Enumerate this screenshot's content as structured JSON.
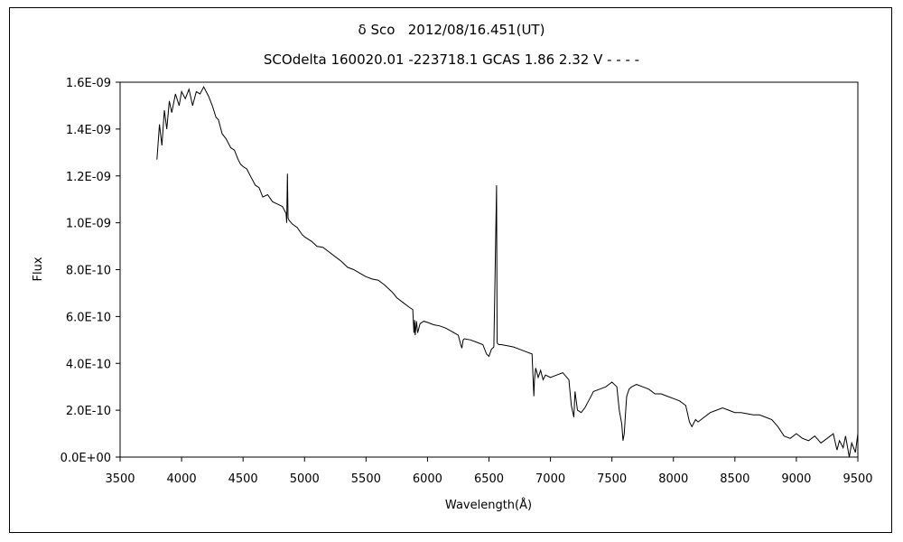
{
  "chart_data": {
    "type": "line",
    "title": "δ Sco   2012/08/16.451(UT)",
    "subtitle": "SCOdelta 160020.01 -223718.1 GCAS 1.86 2.32 V - - - -",
    "xlabel": "Wavelength(Å)",
    "ylabel": "Flux",
    "xlim": [
      3500,
      9500
    ],
    "ylim": [
      0,
      1.6e-09
    ],
    "xticks": [
      3500,
      4000,
      4500,
      5000,
      5500,
      6000,
      6500,
      7000,
      7500,
      8000,
      8500,
      9000,
      9500
    ],
    "yticks": [
      {
        "value": 0,
        "label": "0.0E+00"
      },
      {
        "value": 2e-10,
        "label": "2.0E-10"
      },
      {
        "value": 4e-10,
        "label": "4.0E-10"
      },
      {
        "value": 6e-10,
        "label": "6.0E-10"
      },
      {
        "value": 8e-10,
        "label": "8.0E-10"
      },
      {
        "value": 1e-09,
        "label": "1.0E-09"
      },
      {
        "value": 1.2e-09,
        "label": "1.2E-09"
      },
      {
        "value": 1.4e-09,
        "label": "1.4E-09"
      },
      {
        "value": 1.6e-09,
        "label": "1.6E-09"
      }
    ],
    "grid": false,
    "legend": "none",
    "line_color": "#000000",
    "series": [
      {
        "x": [
          3800,
          3820,
          3840,
          3860,
          3880,
          3900,
          3920,
          3950,
          3980,
          4000,
          4030,
          4060,
          4090,
          4120,
          4150,
          4180,
          4200,
          4220,
          4250,
          4280,
          4300,
          4330,
          4360,
          4400,
          4430,
          4460,
          4480,
          4500,
          4530,
          4560,
          4600,
          4630,
          4660,
          4700,
          4740,
          4780,
          4820,
          4850,
          4855,
          4861,
          4866,
          4875,
          4900,
          4940,
          4980,
          5000,
          5030,
          5060,
          5100,
          5150,
          5200,
          5250,
          5300,
          5350,
          5400,
          5450,
          5500,
          5550,
          5600,
          5650,
          5700,
          5720,
          5750,
          5800,
          5850,
          5880,
          5890,
          5895,
          5900,
          5910,
          5920,
          5940,
          5970,
          6000,
          6050,
          6100,
          6150,
          6200,
          6250,
          6270,
          6280,
          6290,
          6300,
          6350,
          6400,
          6450,
          6480,
          6500,
          6520,
          6540,
          6555,
          6562,
          6566,
          6570,
          6580,
          6600,
          6650,
          6700,
          6750,
          6800,
          6850,
          6865,
          6870,
          6880,
          6900,
          6920,
          6940,
          6960,
          7000,
          7050,
          7100,
          7150,
          7170,
          7190,
          7200,
          7220,
          7250,
          7280,
          7300,
          7320,
          7350,
          7400,
          7450,
          7500,
          7540,
          7560,
          7580,
          7590,
          7600,
          7610,
          7620,
          7640,
          7660,
          7700,
          7750,
          7800,
          7850,
          7900,
          7950,
          8000,
          8050,
          8100,
          8130,
          8150,
          8180,
          8200,
          8250,
          8300,
          8350,
          8400,
          8450,
          8500,
          8550,
          8600,
          8650,
          8700,
          8750,
          8800,
          8850,
          8900,
          8950,
          9000,
          9050,
          9100,
          9150,
          9200,
          9250,
          9300,
          9330,
          9350,
          9380,
          9400,
          9430,
          9450,
          9480,
          9500
        ],
        "y": [
          1.27e-09,
          1.42e-09,
          1.33e-09,
          1.48e-09,
          1.4e-09,
          1.52e-09,
          1.47e-09,
          1.55e-09,
          1.5e-09,
          1.56e-09,
          1.53e-09,
          1.57e-09,
          1.5e-09,
          1.56e-09,
          1.55e-09,
          1.58e-09,
          1.56e-09,
          1.54e-09,
          1.5e-09,
          1.45e-09,
          1.44e-09,
          1.38e-09,
          1.36e-09,
          1.32e-09,
          1.31e-09,
          1.27e-09,
          1.25e-09,
          1.24e-09,
          1.23e-09,
          1.2e-09,
          1.16e-09,
          1.15e-09,
          1.11e-09,
          1.12e-09,
          1.09e-09,
          1.08e-09,
          1.07e-09,
          1.04e-09,
          1e-09,
          1.21e-09,
          1.02e-09,
          1.01e-09,
          9.95e-10,
          9.8e-10,
          9.5e-10,
          9.4e-10,
          9.3e-10,
          9.2e-10,
          9e-10,
          8.95e-10,
          8.75e-10,
          8.55e-10,
          8.35e-10,
          8.1e-10,
          8e-10,
          7.85e-10,
          7.7e-10,
          7.6e-10,
          7.55e-10,
          7.35e-10,
          7.1e-10,
          7e-10,
          6.8e-10,
          6.6e-10,
          6.4e-10,
          6.3e-10,
          5.3e-10,
          5.85e-10,
          5.2e-10,
          5.8e-10,
          5.3e-10,
          5.7e-10,
          5.8e-10,
          5.75e-10,
          5.65e-10,
          5.6e-10,
          5.5e-10,
          5.35e-10,
          5.2e-10,
          4.8e-10,
          4.65e-10,
          5e-10,
          5.05e-10,
          5e-10,
          4.9e-10,
          4.8e-10,
          4.4e-10,
          4.3e-10,
          4.6e-10,
          4.7e-10,
          9.5e-10,
          1.16e-09,
          4.9e-10,
          4.85e-10,
          4.8e-10,
          4.8e-10,
          4.75e-10,
          4.7e-10,
          4.6e-10,
          4.5e-10,
          4.4e-10,
          2.6e-10,
          3.3e-10,
          3.8e-10,
          3.4e-10,
          3.7e-10,
          3.3e-10,
          3.5e-10,
          3.4e-10,
          3.5e-10,
          3.6e-10,
          3.3e-10,
          2.2e-10,
          1.7e-10,
          2.8e-10,
          2e-10,
          1.9e-10,
          2.1e-10,
          2.3e-10,
          2.5e-10,
          2.8e-10,
          2.9e-10,
          3e-10,
          3.2e-10,
          3e-10,
          2e-10,
          1.4e-10,
          7e-11,
          1e-10,
          1.8e-10,
          2.6e-10,
          2.9e-10,
          3e-10,
          3.1e-10,
          3e-10,
          2.9e-10,
          2.7e-10,
          2.7e-10,
          2.6e-10,
          2.5e-10,
          2.4e-10,
          2.2e-10,
          1.5e-10,
          1.3e-10,
          1.6e-10,
          1.5e-10,
          1.7e-10,
          1.9e-10,
          2e-10,
          2.1e-10,
          2e-10,
          1.9e-10,
          1.9e-10,
          1.85e-10,
          1.8e-10,
          1.8e-10,
          1.7e-10,
          1.6e-10,
          1.3e-10,
          9e-11,
          8e-11,
          1e-10,
          8e-11,
          7e-11,
          9e-11,
          6e-11,
          8e-11,
          1e-10,
          3e-11,
          7e-11,
          4e-11,
          9e-11,
          0.0,
          6e-11,
          2e-11,
          1e-10
        ]
      }
    ]
  }
}
